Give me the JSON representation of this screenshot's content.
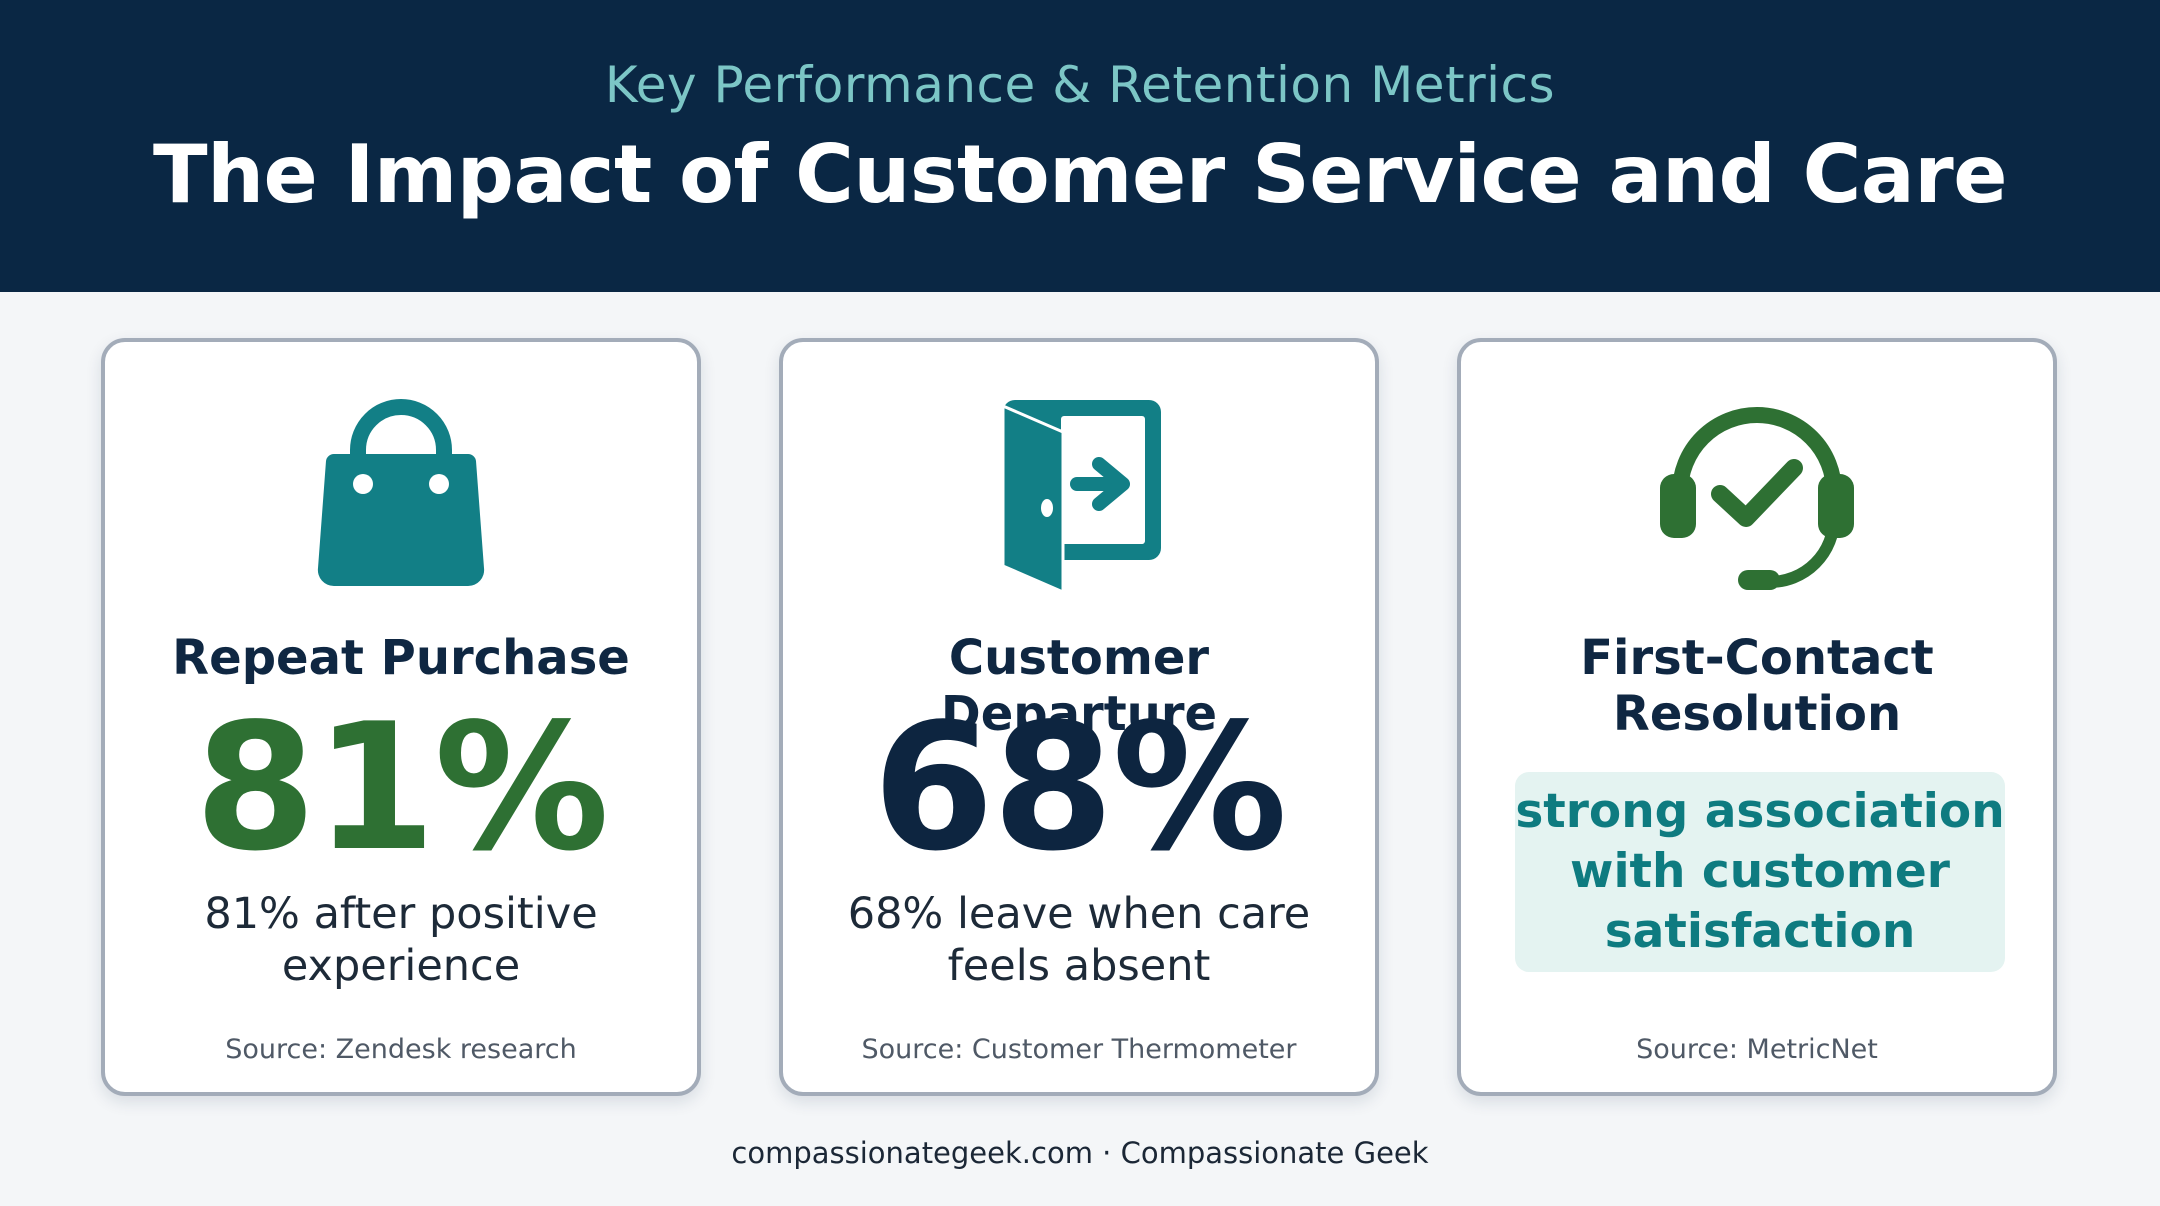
{
  "header": {
    "subtitle": "Key Performance & Retention Metrics",
    "title": "The Impact of Customer Service and Care"
  },
  "colors": {
    "header_bg": "#0a2744",
    "accent_teal": "#127f86",
    "accent_green": "#2e7033",
    "navy": "#0d2540"
  },
  "cards": [
    {
      "icon": "shopping-bag-icon",
      "title": "Repeat Purchase",
      "stat": "81%",
      "description_line1": "81% after positive",
      "description_line2": "experience",
      "source": "Source: Zendesk research"
    },
    {
      "icon": "door-exit-icon",
      "title": "Customer Departure",
      "stat": "68%",
      "description_line1": "68% leave when care",
      "description_line2": "feels absent",
      "source": "Source: Customer Thermometer"
    },
    {
      "icon": "headset-check-icon",
      "title_line1": "First-Contact",
      "title_line2": "Resolution",
      "highlight_line1": "strong association",
      "highlight_line2": "with customer",
      "highlight_line3": "satisfaction",
      "source": "Source: MetricNet"
    }
  ],
  "footer": {
    "text": "compassionategeek.com · Compassionate Geek"
  }
}
